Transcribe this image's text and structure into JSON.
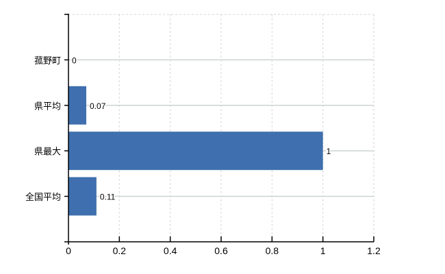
{
  "chart_data": {
    "type": "bar",
    "orientation": "horizontal",
    "title": "",
    "xlabel": "",
    "ylabel": "",
    "categories": [
      "菰野町",
      "県平均",
      "県最大",
      "全国平均"
    ],
    "values": [
      0,
      0.07,
      1,
      0.11
    ],
    "value_labels": [
      "0",
      "0.07",
      "1",
      "0.11"
    ],
    "x_ticks": [
      0,
      0.2,
      0.4,
      0.6,
      0.8,
      1,
      1.2
    ],
    "x_tick_labels": [
      "0",
      "0.2",
      "0.4",
      "0.6",
      "0.8",
      "1",
      "1.2"
    ],
    "xlim": [
      0,
      1.2
    ],
    "grid": true,
    "legend": false,
    "colors": {
      "bar": "#3f6fae",
      "axis": "#000000",
      "grid_vertical": "#d6d6d6",
      "grid_horizontal": "#cdd3d3",
      "text": "#000000",
      "background": "#ffffff"
    }
  }
}
